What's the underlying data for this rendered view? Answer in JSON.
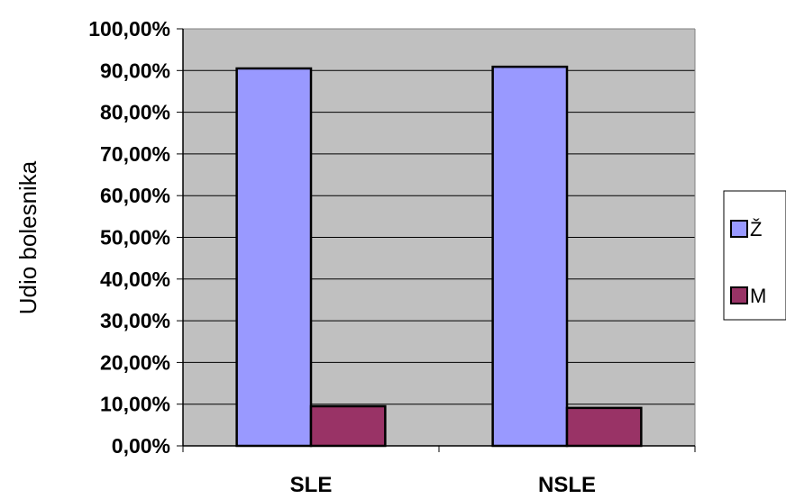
{
  "chart_data": {
    "type": "bar",
    "categories": [
      "SLE",
      "NSLE"
    ],
    "series": [
      {
        "name": "Ž",
        "values": [
          90.5,
          90.9
        ],
        "color": "#9999ff"
      },
      {
        "name": "M",
        "values": [
          9.5,
          9.1
        ],
        "color": "#993366"
      }
    ],
    "ylabel": "Udio bolesnika",
    "xlabel": "",
    "ylim": [
      0,
      100
    ],
    "yticks": [
      "0,00%",
      "10,00%",
      "20,00%",
      "30,00%",
      "40,00%",
      "50,00%",
      "60,00%",
      "70,00%",
      "80,00%",
      "90,00%",
      "100,00%"
    ],
    "plot_background": "#c0c0c0",
    "grid": true,
    "legend_position": "right"
  }
}
